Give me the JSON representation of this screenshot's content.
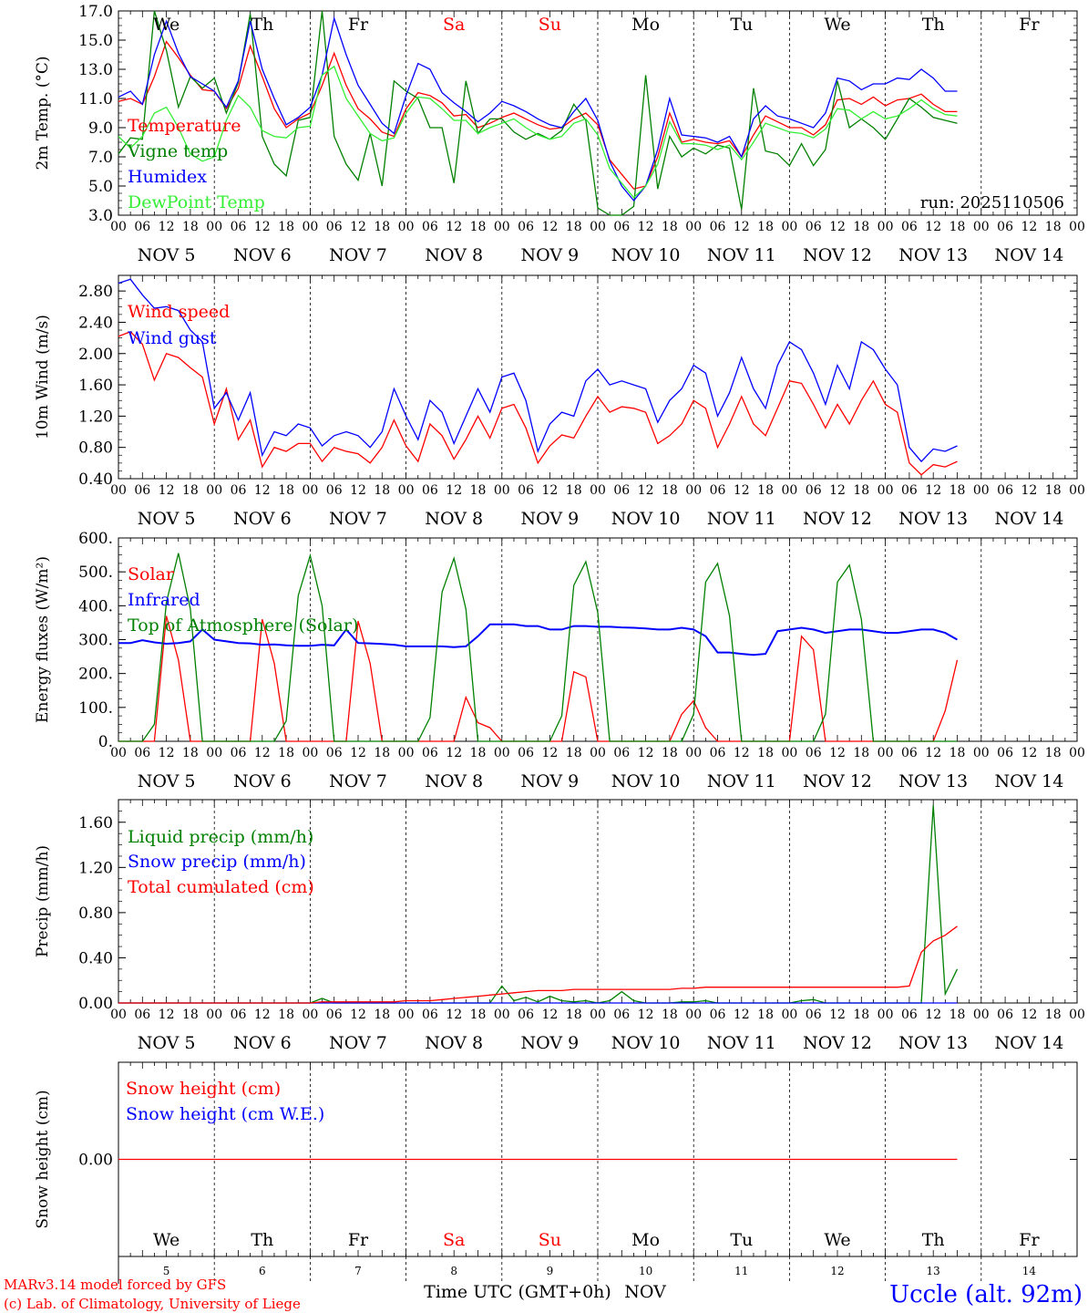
{
  "run_label": "run: 2025110506",
  "footer": {
    "model": "MARv3.14 model forced by GFS",
    "credit": "(c) Lab. of Climatology, University of Liege",
    "axis_title": "Time UTC (GMT+0h)",
    "month": "NOV",
    "station": "Uccle (alt. 92m)"
  },
  "colors": {
    "red": "#ff0000",
    "green": "#008000",
    "blue": "#0000ff",
    "lightgreen": "#33ee33"
  },
  "day_names": [
    "We",
    "Th",
    "Fr",
    "Sa",
    "Su",
    "Mo",
    "Tu",
    "We",
    "Th",
    "Fr"
  ],
  "weekend_flags": [
    false,
    false,
    false,
    true,
    true,
    false,
    false,
    false,
    false,
    false
  ],
  "day_numbers": [
    "5",
    "6",
    "7",
    "8",
    "9",
    "10",
    "11",
    "12",
    "13",
    "14"
  ],
  "date_labels": [
    "NOV 5",
    "NOV 6",
    "NOV 7",
    "NOV 8",
    "NOV 9",
    "NOV 10",
    "NOV 11",
    "NOV 12",
    "NOV 13",
    "NOV 14"
  ],
  "hour_labels": [
    "00",
    "06",
    "12",
    "18"
  ],
  "chart_data": [
    {
      "type": "line",
      "ylabel": "2m Temp. (°C)",
      "ylim": [
        3.0,
        17.0
      ],
      "ticks": [
        "3.0",
        "5.0",
        "7.0",
        "9.0",
        "11.0",
        "13.0",
        "15.0",
        "17.0"
      ],
      "x_start": "2025-11-05 00 UTC",
      "x_step_hours": 3,
      "series": [
        {
          "name": "Temperature",
          "color": "red",
          "values": [
            10.8,
            11.0,
            10.6,
            12.5,
            14.9,
            13.8,
            12.6,
            11.6,
            11.5,
            10.3,
            11.7,
            14.6,
            12.5,
            10.3,
            9.0,
            9.6,
            10.0,
            11.9,
            14.1,
            11.9,
            10.3,
            9.6,
            8.7,
            8.4,
            10.3,
            11.4,
            11.2,
            10.7,
            9.8,
            9.9,
            9.0,
            9.3,
            9.7,
            10.0,
            9.6,
            9.2,
            8.9,
            9.0,
            9.6,
            10.0,
            9.2,
            6.8,
            5.8,
            4.8,
            5.0,
            7.0,
            10.0,
            8.0,
            8.2,
            8.0,
            7.9,
            8.1,
            7.0,
            8.5,
            9.8,
            9.4,
            9.0,
            9.0,
            8.5,
            9.2,
            10.9,
            11.0,
            10.6,
            11.1,
            10.5,
            10.9,
            11.0,
            11.3,
            10.6,
            10.1,
            10.1
          ]
        },
        {
          "name": "Vigne temp",
          "color": "green",
          "values": [
            7.2,
            8.3,
            8.2,
            17.0,
            14.3,
            10.4,
            12.5,
            11.7,
            12.4,
            10.0,
            12.1,
            16.8,
            8.4,
            6.5,
            5.7,
            9.5,
            9.7,
            17.0,
            8.4,
            6.5,
            5.4,
            8.6,
            5.0,
            12.2,
            11.5,
            11.0,
            9.0,
            9.0,
            5.2,
            12.2,
            8.6,
            9.6,
            9.6,
            8.7,
            8.2,
            8.6,
            8.2,
            8.8,
            10.6,
            9.5,
            3.5,
            3.0,
            2.4,
            3.6,
            12.6,
            4.8,
            8.4,
            7.0,
            7.6,
            7.2,
            7.8,
            7.6,
            3.4,
            11.7,
            7.4,
            7.2,
            6.4,
            7.9,
            6.4,
            7.5,
            12.2,
            9.0,
            9.6,
            9.0,
            8.2,
            9.6,
            11.0,
            10.4,
            9.7,
            9.5,
            9.3
          ]
        },
        {
          "name": "Humidex",
          "color": "blue",
          "values": [
            11.1,
            11.5,
            10.6,
            14.0,
            16.3,
            14.1,
            12.5,
            12.0,
            11.5,
            10.4,
            12.2,
            16.3,
            13.0,
            11.0,
            9.2,
            9.7,
            10.4,
            12.6,
            16.5,
            14.0,
            11.9,
            10.6,
            9.3,
            8.6,
            11.2,
            13.4,
            13.0,
            11.4,
            10.7,
            10.1,
            9.4,
            10.0,
            10.8,
            10.5,
            10.1,
            9.6,
            9.2,
            9.0,
            10.1,
            11.0,
            9.5,
            6.7,
            5.0,
            4.0,
            5.0,
            7.5,
            11.0,
            8.5,
            8.4,
            8.3,
            8.0,
            8.4,
            7.0,
            9.6,
            10.5,
            9.8,
            9.6,
            9.3,
            9.0,
            10.0,
            12.4,
            12.2,
            11.6,
            12.0,
            12.0,
            12.4,
            12.3,
            13.0,
            12.4,
            11.5,
            11.5
          ]
        },
        {
          "name": "DewPoint Temp",
          "color": "lightgreen",
          "values": [
            8.4,
            7.6,
            8.4,
            10.0,
            10.4,
            9.0,
            7.2,
            6.7,
            7.0,
            9.5,
            11.2,
            10.4,
            8.8,
            8.4,
            8.3,
            9.0,
            9.1,
            12.6,
            13.2,
            11.0,
            9.8,
            8.6,
            8.1,
            8.3,
            10.0,
            11.1,
            11.0,
            10.3,
            9.5,
            9.5,
            8.6,
            9.0,
            9.3,
            9.6,
            9.0,
            8.5,
            8.2,
            8.4,
            9.3,
            9.6,
            8.5,
            6.2,
            5.2,
            4.2,
            5.0,
            6.5,
            9.4,
            7.9,
            7.9,
            7.8,
            7.5,
            7.8,
            6.8,
            8.0,
            9.3,
            9.0,
            8.7,
            8.6,
            8.3,
            8.9,
            10.3,
            10.2,
            9.6,
            10.1,
            9.6,
            9.8,
            10.3,
            10.9,
            10.3,
            9.9,
            9.8
          ]
        }
      ]
    },
    {
      "type": "line",
      "ylabel": "10m Wind (m/s)",
      "ylim": [
        0.4,
        3.0
      ],
      "ticks": [
        "0.40",
        "0.80",
        "1.20",
        "1.60",
        "2.00",
        "2.40",
        "2.80"
      ],
      "x_start": "2025-11-05 00 UTC",
      "x_step_hours": 3,
      "series": [
        {
          "name": "Wind speed",
          "color": "red",
          "values": [
            2.22,
            2.28,
            2.12,
            1.66,
            2.0,
            1.95,
            1.82,
            1.7,
            1.1,
            1.55,
            0.9,
            1.15,
            0.55,
            0.8,
            0.75,
            0.85,
            0.85,
            0.62,
            0.8,
            0.75,
            0.72,
            0.6,
            0.8,
            1.15,
            0.82,
            0.62,
            1.1,
            0.95,
            0.65,
            0.9,
            1.2,
            0.92,
            1.3,
            1.35,
            1.05,
            0.6,
            0.82,
            0.96,
            0.92,
            1.2,
            1.45,
            1.25,
            1.32,
            1.3,
            1.25,
            0.85,
            0.95,
            1.1,
            1.4,
            1.3,
            0.8,
            1.1,
            1.45,
            1.1,
            0.95,
            1.3,
            1.65,
            1.62,
            1.35,
            1.05,
            1.35,
            1.1,
            1.4,
            1.65,
            1.35,
            1.25,
            0.6,
            0.45,
            0.58,
            0.55,
            0.62
          ]
        },
        {
          "name": "Wind gust",
          "color": "blue",
          "values": [
            2.9,
            2.95,
            2.75,
            2.58,
            2.6,
            2.55,
            2.3,
            2.15,
            1.3,
            1.5,
            1.15,
            1.5,
            0.7,
            1.0,
            0.95,
            1.1,
            1.05,
            0.82,
            0.95,
            1.0,
            0.95,
            0.8,
            1.0,
            1.55,
            1.2,
            0.9,
            1.4,
            1.25,
            0.85,
            1.2,
            1.55,
            1.25,
            1.7,
            1.75,
            1.4,
            0.75,
            1.1,
            1.25,
            1.2,
            1.65,
            1.8,
            1.6,
            1.65,
            1.6,
            1.55,
            1.12,
            1.4,
            1.55,
            1.85,
            1.75,
            1.2,
            1.5,
            1.95,
            1.55,
            1.3,
            1.85,
            2.15,
            2.05,
            1.75,
            1.35,
            1.85,
            1.55,
            2.15,
            2.05,
            1.8,
            1.6,
            0.8,
            0.62,
            0.78,
            0.75,
            0.82
          ]
        }
      ]
    },
    {
      "type": "line",
      "ylabel": "Energy fluxes (W/m²)",
      "ylim": [
        0,
        600
      ],
      "ticks": [
        "0.",
        "100.",
        "200.",
        "300.",
        "400.",
        "500.",
        "600."
      ],
      "x_start": "2025-11-05 00 UTC",
      "x_step_hours": 3,
      "series": [
        {
          "name": "Solar",
          "color": "red",
          "values": [
            0,
            0,
            0,
            0,
            370,
            240,
            0,
            0,
            0,
            0,
            0,
            0,
            360,
            230,
            0,
            0,
            0,
            0,
            0,
            0,
            355,
            230,
            0,
            0,
            0,
            0,
            0,
            0,
            0,
            130,
            55,
            40,
            0,
            0,
            0,
            0,
            0,
            0,
            205,
            190,
            0,
            0,
            0,
            0,
            0,
            0,
            0,
            80,
            120,
            40,
            0,
            0,
            0,
            0,
            0,
            0,
            0,
            310,
            270,
            0,
            0,
            0,
            0,
            0,
            0,
            0,
            0,
            0,
            0,
            90,
            240
          ]
        },
        {
          "name": "Infrared",
          "color": "blue",
          "values": [
            290,
            290,
            298,
            292,
            288,
            290,
            295,
            330,
            300,
            295,
            290,
            289,
            285,
            286,
            283,
            282,
            282,
            285,
            283,
            330,
            290,
            289,
            287,
            285,
            280,
            280,
            280,
            280,
            278,
            280,
            310,
            345,
            345,
            345,
            340,
            340,
            330,
            330,
            340,
            340,
            338,
            338,
            336,
            335,
            333,
            330,
            330,
            335,
            330,
            310,
            262,
            262,
            258,
            255,
            258,
            325,
            330,
            335,
            330,
            320,
            325,
            330,
            330,
            325,
            320,
            320,
            325,
            330,
            330,
            320,
            300
          ]
        },
        {
          "name": "Top of Atmosphere (Solar)",
          "color": "green",
          "values": [
            0,
            0,
            0,
            50,
            410,
            555,
            390,
            0,
            0,
            0,
            0,
            0,
            0,
            0,
            60,
            430,
            548,
            400,
            0,
            0,
            0,
            0,
            0,
            0,
            0,
            0,
            70,
            440,
            540,
            390,
            0,
            0,
            0,
            0,
            0,
            0,
            0,
            75,
            460,
            530,
            380,
            0,
            0,
            0,
            0,
            0,
            0,
            0,
            80,
            470,
            525,
            370,
            0,
            0,
            0,
            0,
            0,
            0,
            0,
            80,
            470,
            520,
            360,
            0,
            0,
            0,
            0,
            0,
            0,
            0,
            0
          ]
        }
      ]
    },
    {
      "type": "line",
      "ylabel": "Precip (mm/h)",
      "ylim": [
        0,
        1.8
      ],
      "ticks": [
        "0.00",
        "0.40",
        "0.80",
        "1.20",
        "1.60"
      ],
      "x_start": "2025-11-05 00 UTC",
      "x_step_hours": 3,
      "series": [
        {
          "name": "Liquid precip (mm/h)",
          "color": "green",
          "values": [
            0,
            0,
            0,
            0,
            0,
            0,
            0,
            0,
            0,
            0,
            0,
            0,
            0,
            0,
            0,
            0,
            0,
            0.04,
            0,
            0,
            0,
            0,
            0,
            0,
            0,
            0,
            0,
            0,
            0,
            0,
            0,
            0,
            0.15,
            0.02,
            0.05,
            0.01,
            0.06,
            0.02,
            0.01,
            0.02,
            0,
            0.02,
            0.1,
            0.02,
            0,
            0,
            0,
            0.01,
            0.01,
            0.02,
            0,
            0,
            0,
            0,
            0,
            0,
            0,
            0.02,
            0.03,
            0,
            0,
            0,
            0,
            0,
            0,
            0,
            0,
            0,
            1.75,
            0.08,
            0.3
          ]
        },
        {
          "name": "Snow precip (mm/h)",
          "color": "blue",
          "values": [
            0,
            0,
            0,
            0,
            0,
            0,
            0,
            0,
            0,
            0,
            0,
            0,
            0,
            0,
            0,
            0,
            0,
            0,
            0,
            0,
            0,
            0,
            0,
            0,
            0,
            0,
            0,
            0,
            0,
            0,
            0,
            0,
            0,
            0,
            0,
            0,
            0,
            0,
            0,
            0,
            0,
            0,
            0,
            0,
            0,
            0,
            0,
            0,
            0,
            0,
            0,
            0,
            0,
            0,
            0,
            0,
            0,
            0,
            0,
            0,
            0,
            0,
            0,
            0,
            0,
            0,
            0,
            0,
            0,
            0,
            0
          ]
        },
        {
          "name": "Total cumulated (cm)",
          "color": "red",
          "values": [
            0,
            0,
            0,
            0,
            0,
            0,
            0,
            0,
            0,
            0,
            0,
            0,
            0,
            0,
            0,
            0,
            0,
            0.01,
            0.01,
            0.01,
            0.01,
            0.01,
            0.01,
            0.01,
            0.02,
            0.02,
            0.02,
            0.03,
            0.04,
            0.05,
            0.06,
            0.07,
            0.08,
            0.09,
            0.1,
            0.11,
            0.11,
            0.11,
            0.12,
            0.12,
            0.12,
            0.12,
            0.12,
            0.12,
            0.12,
            0.12,
            0.12,
            0.13,
            0.13,
            0.14,
            0.14,
            0.14,
            0.14,
            0.14,
            0.14,
            0.14,
            0.14,
            0.14,
            0.14,
            0.14,
            0.14,
            0.14,
            0.14,
            0.14,
            0.14,
            0.14,
            0.15,
            0.45,
            0.55,
            0.6,
            0.68
          ]
        }
      ]
    },
    {
      "type": "line",
      "ylabel": "Snow height (cm)",
      "ylim": [
        -1,
        1
      ],
      "ticks": [
        "0.00"
      ],
      "x_start": "2025-11-05 00 UTC",
      "x_step_hours": 3,
      "series": [
        {
          "name": "Snow height (cm)",
          "color": "red",
          "values": [
            0,
            0,
            0,
            0,
            0,
            0,
            0,
            0,
            0,
            0,
            0,
            0,
            0,
            0,
            0,
            0,
            0,
            0,
            0,
            0,
            0,
            0,
            0,
            0,
            0,
            0,
            0,
            0,
            0,
            0,
            0,
            0,
            0,
            0,
            0,
            0,
            0,
            0,
            0,
            0,
            0,
            0,
            0,
            0,
            0,
            0,
            0,
            0,
            0,
            0,
            0,
            0,
            0,
            0,
            0,
            0,
            0,
            0,
            0,
            0,
            0,
            0,
            0,
            0,
            0,
            0,
            0,
            0,
            0,
            0,
            0
          ]
        },
        {
          "name": "Snow height (cm W.E.)",
          "color": "blue",
          "values": []
        }
      ]
    }
  ]
}
